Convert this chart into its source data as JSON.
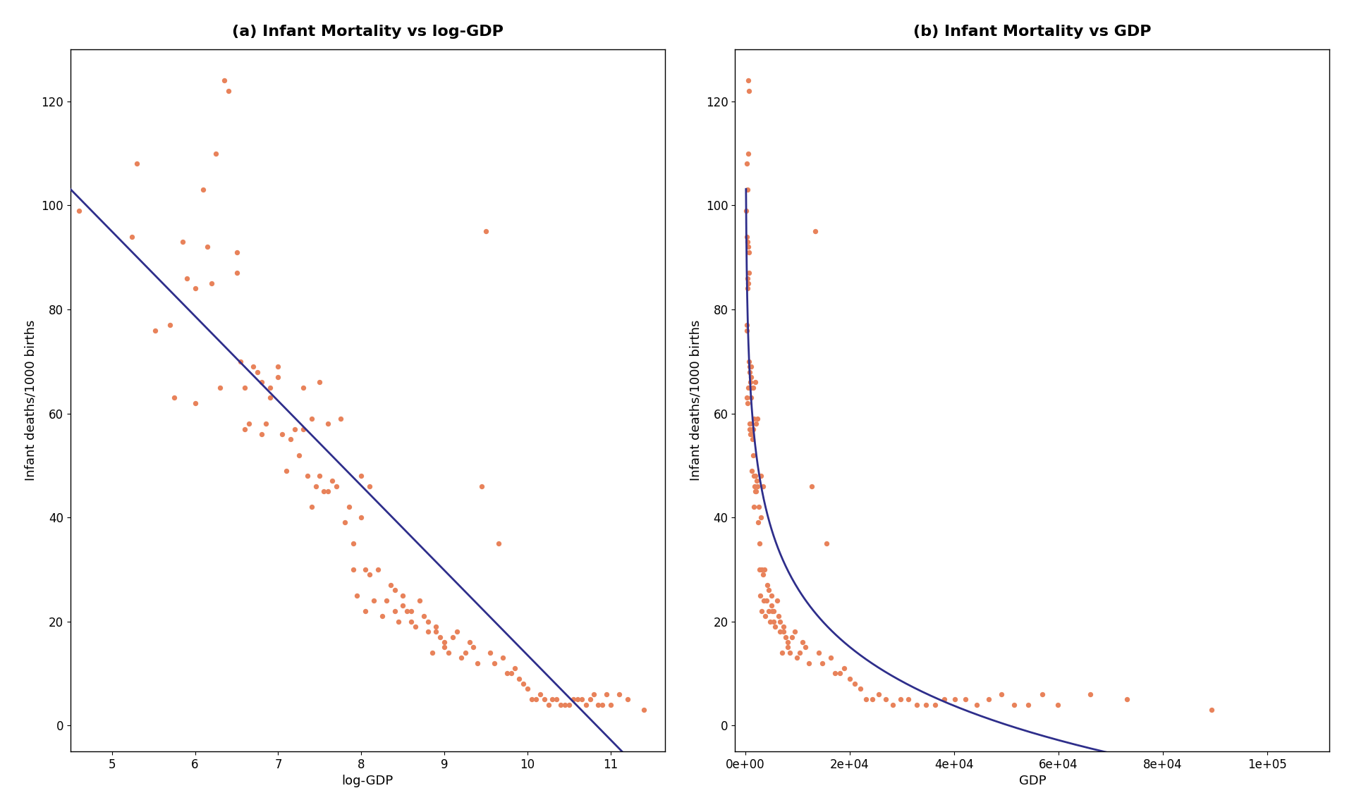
{
  "title_a": "(a) Infant Mortality vs log-GDP",
  "title_b": "(b) Infant Mortality vs GDP",
  "xlabel_a": "log-GDP",
  "xlabel_b": "GDP",
  "ylabel": "Infant deaths/1000 births",
  "scatter_color": "#E8825A",
  "line_color": "#2E2E8B",
  "background_color": "#FFFFFF",
  "title_fontsize": 16,
  "axis_fontsize": 13,
  "tick_fontsize": 12,
  "intercept": 176.5,
  "slope": -16.3,
  "points": [
    [
      4.6,
      99.0
    ],
    [
      5.24,
      94.0
    ],
    [
      5.3,
      108.0
    ],
    [
      5.52,
      76.0
    ],
    [
      5.7,
      77.0
    ],
    [
      5.75,
      63.0
    ],
    [
      5.85,
      93.0
    ],
    [
      5.9,
      86.0
    ],
    [
      6.0,
      84.0
    ],
    [
      6.0,
      62.0
    ],
    [
      6.1,
      103.0
    ],
    [
      6.15,
      92.0
    ],
    [
      6.2,
      85.0
    ],
    [
      6.25,
      110.0
    ],
    [
      6.3,
      65.0
    ],
    [
      6.35,
      124.0
    ],
    [
      6.4,
      122.0
    ],
    [
      6.5,
      91.0
    ],
    [
      6.5,
      87.0
    ],
    [
      6.55,
      70.0
    ],
    [
      6.6,
      65.0
    ],
    [
      6.6,
      57.0
    ],
    [
      6.65,
      58.0
    ],
    [
      6.7,
      69.0
    ],
    [
      6.75,
      68.0
    ],
    [
      6.8,
      56.0
    ],
    [
      6.8,
      66.0
    ],
    [
      6.85,
      58.0
    ],
    [
      6.9,
      63.0
    ],
    [
      6.9,
      65.0
    ],
    [
      7.0,
      69.0
    ],
    [
      7.0,
      67.0
    ],
    [
      7.05,
      56.0
    ],
    [
      7.1,
      49.0
    ],
    [
      7.15,
      55.0
    ],
    [
      7.2,
      57.0
    ],
    [
      7.25,
      52.0
    ],
    [
      7.3,
      65.0
    ],
    [
      7.3,
      57.0
    ],
    [
      7.35,
      48.0
    ],
    [
      7.4,
      59.0
    ],
    [
      7.4,
      42.0
    ],
    [
      7.45,
      46.0
    ],
    [
      7.5,
      66.0
    ],
    [
      7.5,
      48.0
    ],
    [
      7.55,
      45.0
    ],
    [
      7.6,
      58.0
    ],
    [
      7.6,
      45.0
    ],
    [
      7.65,
      47.0
    ],
    [
      7.7,
      46.0
    ],
    [
      7.75,
      59.0
    ],
    [
      7.8,
      39.0
    ],
    [
      7.85,
      42.0
    ],
    [
      7.9,
      30.0
    ],
    [
      7.9,
      35.0
    ],
    [
      7.95,
      25.0
    ],
    [
      8.0,
      48.0
    ],
    [
      8.0,
      40.0
    ],
    [
      8.05,
      22.0
    ],
    [
      8.05,
      30.0
    ],
    [
      8.1,
      29.0
    ],
    [
      8.1,
      46.0
    ],
    [
      8.15,
      24.0
    ],
    [
      8.2,
      30.0
    ],
    [
      8.25,
      21.0
    ],
    [
      8.3,
      24.0
    ],
    [
      8.35,
      27.0
    ],
    [
      8.4,
      22.0
    ],
    [
      8.4,
      26.0
    ],
    [
      8.45,
      20.0
    ],
    [
      8.5,
      25.0
    ],
    [
      8.5,
      23.0
    ],
    [
      8.55,
      22.0
    ],
    [
      8.6,
      20.0
    ],
    [
      8.6,
      22.0
    ],
    [
      8.65,
      19.0
    ],
    [
      8.7,
      24.0
    ],
    [
      8.75,
      21.0
    ],
    [
      8.8,
      18.0
    ],
    [
      8.8,
      20.0
    ],
    [
      8.85,
      14.0
    ],
    [
      8.9,
      19.0
    ],
    [
      8.9,
      18.0
    ],
    [
      8.95,
      17.0
    ],
    [
      9.0,
      16.0
    ],
    [
      9.0,
      15.0
    ],
    [
      9.05,
      14.0
    ],
    [
      9.1,
      17.0
    ],
    [
      9.15,
      18.0
    ],
    [
      9.2,
      13.0
    ],
    [
      9.25,
      14.0
    ],
    [
      9.3,
      16.0
    ],
    [
      9.35,
      15.0
    ],
    [
      9.4,
      12.0
    ],
    [
      9.45,
      46.0
    ],
    [
      9.5,
      95.0
    ],
    [
      9.55,
      14.0
    ],
    [
      9.6,
      12.0
    ],
    [
      9.65,
      35.0
    ],
    [
      9.7,
      13.0
    ],
    [
      9.75,
      10.0
    ],
    [
      9.8,
      10.0
    ],
    [
      9.85,
      11.0
    ],
    [
      9.9,
      9.0
    ],
    [
      9.95,
      8.0
    ],
    [
      10.0,
      7.0
    ],
    [
      10.05,
      5.0
    ],
    [
      10.1,
      5.0
    ],
    [
      10.15,
      6.0
    ],
    [
      10.2,
      5.0
    ],
    [
      10.25,
      4.0
    ],
    [
      10.3,
      5.0
    ],
    [
      10.35,
      5.0
    ],
    [
      10.4,
      4.0
    ],
    [
      10.45,
      4.0
    ],
    [
      10.5,
      4.0
    ],
    [
      10.55,
      5.0
    ],
    [
      10.6,
      5.0
    ],
    [
      10.65,
      5.0
    ],
    [
      10.7,
      4.0
    ],
    [
      10.75,
      5.0
    ],
    [
      10.8,
      6.0
    ],
    [
      10.85,
      4.0
    ],
    [
      10.9,
      4.0
    ],
    [
      10.95,
      6.0
    ],
    [
      11.0,
      4.0
    ],
    [
      11.1,
      6.0
    ],
    [
      11.2,
      5.0
    ],
    [
      11.4,
      3.0
    ]
  ]
}
